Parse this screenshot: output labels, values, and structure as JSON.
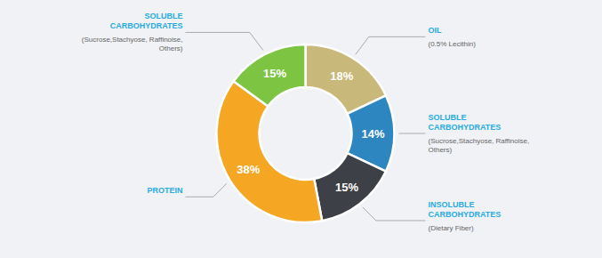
{
  "chart_data": {
    "type": "pie",
    "categories": [
      "OIL",
      "SOLUBLE\nCARBOHYDRATES",
      "INSOLUBLE\nCARBOHYDRATES",
      "PROTEIN",
      "SOLUBLE\nCARBOHYDRATES"
    ],
    "values": [
      18,
      14,
      15,
      38,
      15
    ],
    "value_labels": [
      "18%",
      "14%",
      "15%",
      "38%",
      "15%"
    ],
    "colors": [
      "#C8B87A",
      "#2E86C1",
      "#3D4047",
      "#F5A623",
      "#7DC443"
    ],
    "annotations": [
      "(0.5% Lecithin)",
      "(Sucrose,Stachyose, Raffinoise,\nOthers)",
      "(Dietary Fiber)",
      null,
      "(Sucrose,Stachyose, Raffinoise,\nOthers)"
    ],
    "data_labels": true
  }
}
